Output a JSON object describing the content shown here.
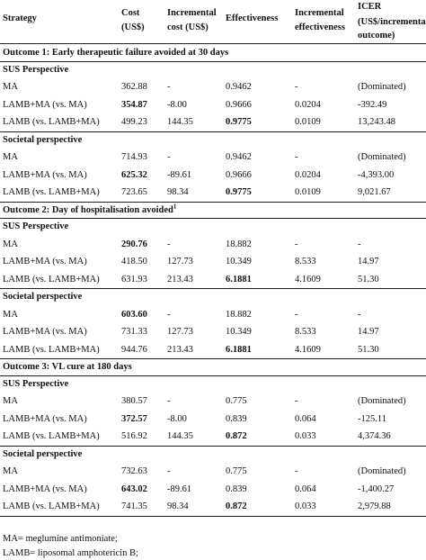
{
  "header": {
    "strategy": "Strategy",
    "cost_1": "Cost",
    "cost_2": "(US$)",
    "inc_cost_1": "Incremental",
    "inc_cost_2": "cost (US$)",
    "effectiveness": "Effectiveness",
    "inc_eff_1": "Incremental",
    "inc_eff_2": "effectiveness",
    "icer_1": "ICER",
    "icer_2": "(US$/incremental",
    "icer_3": "outcome)"
  },
  "outcomes": [
    {
      "title": "Outcome 1: Early therapeutic failure avoided at 30 days",
      "title_sup": "",
      "perspectives": [
        {
          "name": "SUS Perspective",
          "rows": [
            {
              "strategy": "MA",
              "cost": "362.88",
              "inc_cost": "-",
              "eff": "0.9462",
              "inc_eff": "-",
              "icer": "(Dominated)"
            },
            {
              "strategy": "LAMB+MA (vs. MA)",
              "cost": "354.87",
              "inc_cost": "-8.00",
              "eff": "0.9666",
              "inc_eff": "0.0204",
              "icer": "-392.49"
            },
            {
              "strategy": "LAMB (vs. LAMB+MA)",
              "cost": "499.23",
              "inc_cost": "144.35",
              "eff": "0.9775",
              "inc_eff": "0.0109",
              "icer": "13,243.48"
            }
          ]
        },
        {
          "name": "Societal perspective",
          "rows": [
            {
              "strategy": "MA",
              "cost": "714.93",
              "inc_cost": "-",
              "eff": "0.9462",
              "inc_eff": "-",
              "icer": "(Dominated)"
            },
            {
              "strategy": "LAMB+MA (vs. MA)",
              "cost": "625.32",
              "inc_cost": "-89.61",
              "eff": "0.9666",
              "inc_eff": "0.0204",
              "icer": "-4,393.00"
            },
            {
              "strategy": "LAMB (vs. LAMB+MA)",
              "cost": "723.65",
              "inc_cost": "98.34",
              "eff": "0.9775",
              "inc_eff": "0.0109",
              "icer": "9,021.67"
            }
          ]
        }
      ]
    },
    {
      "title": "Outcome 2: Day of  hospitalisation avoided",
      "title_sup": "1",
      "perspectives": [
        {
          "name": "SUS Perspective",
          "rows": [
            {
              "strategy": "MA",
              "cost": "290.76",
              "inc_cost": "-",
              "eff": "18.882",
              "inc_eff": "-",
              "icer": "-"
            },
            {
              "strategy": "LAMB+MA (vs. MA)",
              "cost": "418.50",
              "inc_cost": "127.73",
              "eff": "10.349",
              "inc_eff": "8.533",
              "icer": "14.97"
            },
            {
              "strategy": "LAMB (vs. LAMB+MA)",
              "cost": "631.93",
              "inc_cost": "213.43",
              "eff": "6.1881",
              "inc_eff": "4.1609",
              "icer": "51.30"
            }
          ]
        },
        {
          "name": "Societal perspective",
          "rows": [
            {
              "strategy": "MA",
              "cost": "603.60",
              "inc_cost": "-",
              "eff": "18.882",
              "inc_eff": "-",
              "icer": "-"
            },
            {
              "strategy": "LAMB+MA (vs. MA)",
              "cost": "731.33",
              "inc_cost": "127.73",
              "eff": "10.349",
              "inc_eff": "8.533",
              "icer": "14.97"
            },
            {
              "strategy": "LAMB (vs. LAMB+MA)",
              "cost": "944.76",
              "inc_cost": "213.43",
              "eff": "6.1881",
              "inc_eff": "4.1609",
              "icer": "51.30"
            }
          ]
        }
      ]
    },
    {
      "title": "Outcome 3: VL cure  at 180 days",
      "title_sup": "",
      "perspectives": [
        {
          "name": "SUS Perspective",
          "rows": [
            {
              "strategy": "MA",
              "cost": "380.57",
              "inc_cost": "-",
              "eff": "0.775",
              "inc_eff": "-",
              "icer": "(Dominated)"
            },
            {
              "strategy": "LAMB+MA (vs. MA)",
              "cost": "372.57",
              "inc_cost": "-8.00",
              "eff": "0.839",
              "inc_eff": "0.064",
              "icer": "-125.11"
            },
            {
              "strategy": "LAMB (vs. LAMB+MA)",
              "cost": "516.92",
              "inc_cost": "144.35",
              "eff": "0.872",
              "inc_eff": "0.033",
              "icer": "4,374.36"
            }
          ]
        },
        {
          "name": "Societal perspective",
          "rows": [
            {
              "strategy": "MA",
              "cost": "732.63",
              "inc_cost": "-",
              "eff": "0.775",
              "inc_eff": "-",
              "icer": "(Dominated)"
            },
            {
              "strategy": "LAMB+MA (vs. MA)",
              "cost": "643.02",
              "inc_cost": "-89.61",
              "eff": "0.839",
              "inc_eff": "0.064",
              "icer": "-1,400.27"
            },
            {
              "strategy": "LAMB (vs. LAMB+MA)",
              "cost": "741.35",
              "inc_cost": "98.34",
              "eff": "0.872",
              "inc_eff": "0.033",
              "icer": "2,979.88"
            }
          ]
        }
      ]
    }
  ],
  "bold_cost": [
    [
      [
        false,
        true,
        false
      ],
      [
        false,
        true,
        false
      ]
    ],
    [
      [
        true,
        false,
        false
      ],
      [
        true,
        false,
        false
      ]
    ],
    [
      [
        false,
        true,
        false
      ],
      [
        false,
        true,
        false
      ]
    ]
  ],
  "bold_eff": [
    [
      [
        false,
        false,
        true
      ],
      [
        false,
        false,
        true
      ]
    ],
    [
      [
        false,
        false,
        true
      ],
      [
        false,
        false,
        true
      ]
    ],
    [
      [
        false,
        false,
        true
      ],
      [
        false,
        false,
        true
      ]
    ]
  ],
  "footnotes": [
    "MA= meglumine antimoniate;",
    "LAMB= liposomal amphotericin B;"
  ]
}
